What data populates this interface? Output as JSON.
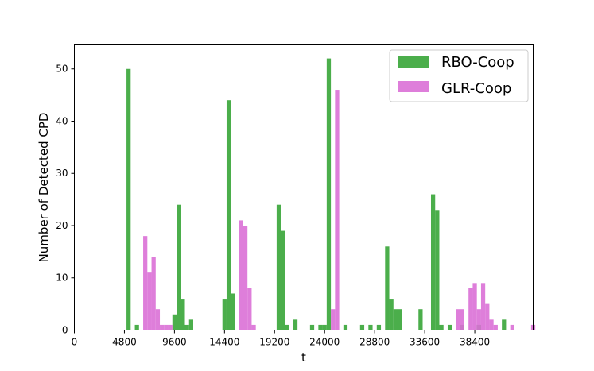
{
  "chart_data": {
    "type": "bar",
    "xlabel": "t",
    "ylabel": "Number of Detected CPD",
    "xlim": [
      0,
      44000
    ],
    "ylim": [
      0,
      54.6
    ],
    "bin_width": 400,
    "x_ticks": [
      0,
      4800,
      9600,
      14400,
      19200,
      24000,
      28800,
      33600,
      38400
    ],
    "y_ticks": [
      0,
      10,
      20,
      30,
      40,
      50
    ],
    "legend_position": "top-right",
    "grid": false,
    "series": [
      {
        "name": "RBO-Coop",
        "color": "#2ca02c",
        "points": [
          {
            "x": 5000,
            "y": 50
          },
          {
            "x": 5800,
            "y": 1
          },
          {
            "x": 9400,
            "y": 3
          },
          {
            "x": 9800,
            "y": 24
          },
          {
            "x": 10200,
            "y": 6
          },
          {
            "x": 10600,
            "y": 1
          },
          {
            "x": 11000,
            "y": 2
          },
          {
            "x": 14200,
            "y": 6
          },
          {
            "x": 14600,
            "y": 44
          },
          {
            "x": 15000,
            "y": 7
          },
          {
            "x": 19400,
            "y": 24
          },
          {
            "x": 19800,
            "y": 19
          },
          {
            "x": 20200,
            "y": 1
          },
          {
            "x": 21000,
            "y": 2
          },
          {
            "x": 22600,
            "y": 1
          },
          {
            "x": 23400,
            "y": 1
          },
          {
            "x": 23800,
            "y": 1
          },
          {
            "x": 24200,
            "y": 52
          },
          {
            "x": 25800,
            "y": 1
          },
          {
            "x": 27400,
            "y": 1
          },
          {
            "x": 28200,
            "y": 1
          },
          {
            "x": 29000,
            "y": 1
          },
          {
            "x": 29800,
            "y": 16
          },
          {
            "x": 30200,
            "y": 6
          },
          {
            "x": 30600,
            "y": 4
          },
          {
            "x": 31000,
            "y": 4
          },
          {
            "x": 33000,
            "y": 4
          },
          {
            "x": 34200,
            "y": 26
          },
          {
            "x": 34600,
            "y": 23
          },
          {
            "x": 35000,
            "y": 1
          },
          {
            "x": 35800,
            "y": 1
          },
          {
            "x": 37000,
            "y": 1
          },
          {
            "x": 38600,
            "y": 1
          },
          {
            "x": 41000,
            "y": 2
          }
        ]
      },
      {
        "name": "GLR-Coop",
        "color": "#da70d6",
        "points": [
          {
            "x": 6600,
            "y": 18
          },
          {
            "x": 7000,
            "y": 11
          },
          {
            "x": 7400,
            "y": 14
          },
          {
            "x": 7800,
            "y": 4
          },
          {
            "x": 8200,
            "y": 1
          },
          {
            "x": 8600,
            "y": 1
          },
          {
            "x": 9000,
            "y": 1
          },
          {
            "x": 15800,
            "y": 21
          },
          {
            "x": 16200,
            "y": 20
          },
          {
            "x": 16600,
            "y": 8
          },
          {
            "x": 17000,
            "y": 1
          },
          {
            "x": 24600,
            "y": 4
          },
          {
            "x": 25000,
            "y": 46
          },
          {
            "x": 36600,
            "y": 4
          },
          {
            "x": 37000,
            "y": 4
          },
          {
            "x": 37800,
            "y": 8
          },
          {
            "x": 38200,
            "y": 9
          },
          {
            "x": 38600,
            "y": 4
          },
          {
            "x": 39000,
            "y": 9
          },
          {
            "x": 39400,
            "y": 5
          },
          {
            "x": 39800,
            "y": 2
          },
          {
            "x": 40200,
            "y": 1
          },
          {
            "x": 41800,
            "y": 1
          },
          {
            "x": 43800,
            "y": 1
          }
        ]
      }
    ]
  }
}
